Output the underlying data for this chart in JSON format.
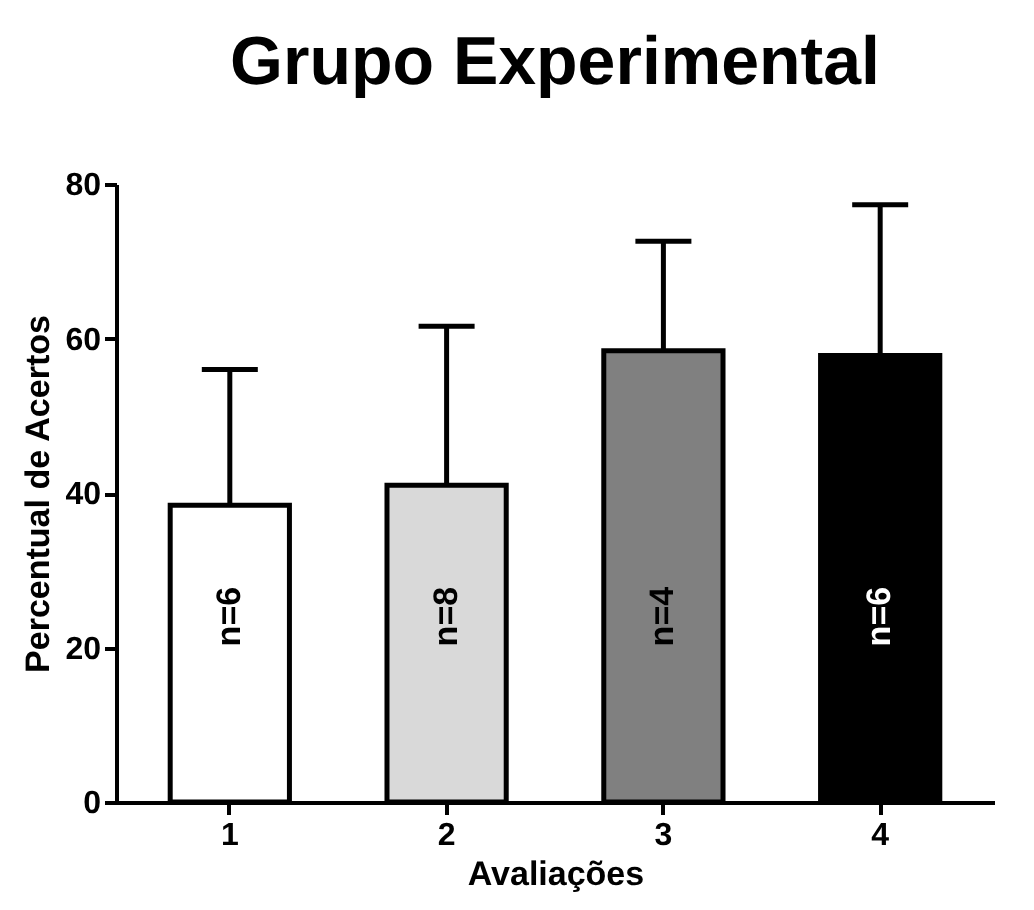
{
  "chart_data": {
    "type": "bar",
    "title": "Grupo Experimental",
    "xlabel": "Avaliações",
    "ylabel": "Percentual de Acertos",
    "categories": [
      "1",
      "2",
      "3",
      "4"
    ],
    "values": [
      38.4,
      41,
      58.4,
      57.8
    ],
    "colors": [
      "#ffffff",
      "#d9d9d9",
      "#808080",
      "#000000"
    ],
    "errors": [
      [
        38.4,
        56
      ],
      [
        41,
        61.6
      ],
      [
        58.4,
        72.6
      ],
      [
        57.8,
        77.3
      ]
    ],
    "ylim": [
      0,
      80
    ],
    "yticks": [
      0,
      20,
      40,
      60,
      80
    ],
    "grid": false,
    "legend": false,
    "annotations": [
      "n=6",
      "n=8",
      "n=4",
      "n=6"
    ]
  }
}
